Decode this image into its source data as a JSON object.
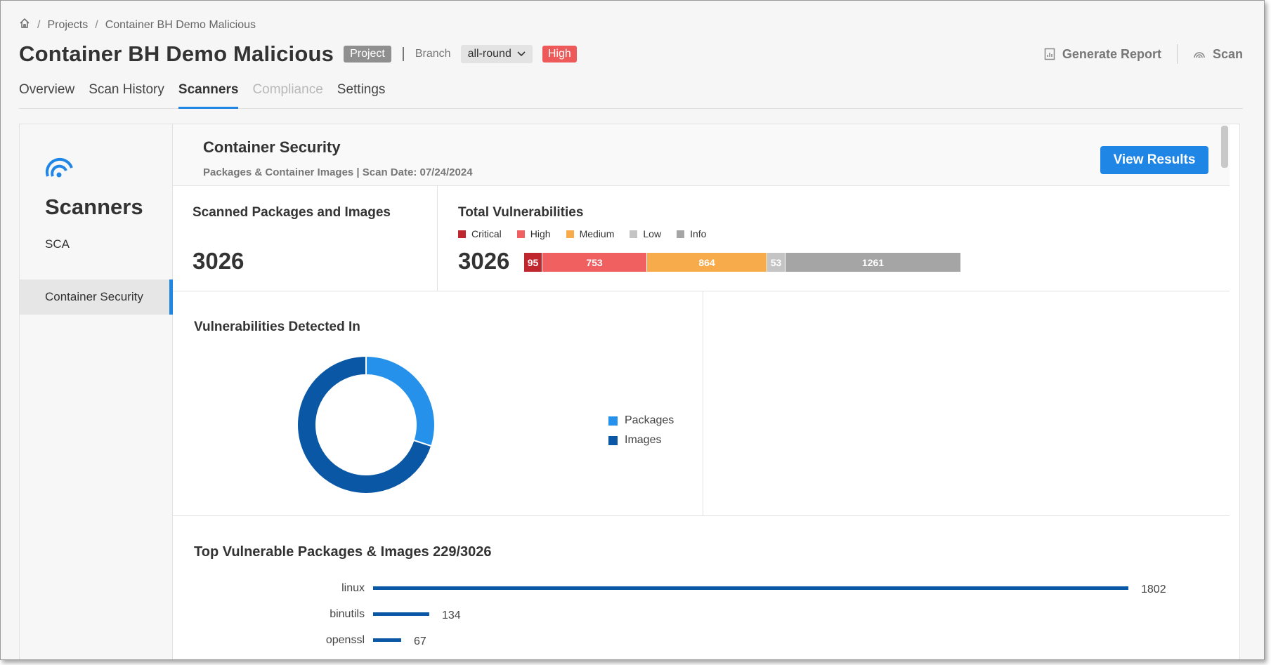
{
  "breadcrumb": {
    "projects": "Projects",
    "current": "Container BH Demo Malicious"
  },
  "header": {
    "title": "Container BH Demo Malicious",
    "project_badge": "Project",
    "branch_label": "Branch",
    "branch_value": "all-round",
    "risk_badge": "High",
    "generate_report": "Generate Report",
    "scan": "Scan"
  },
  "tabs": [
    "Overview",
    "Scan History",
    "Scanners",
    "Compliance",
    "Settings"
  ],
  "sidebar": {
    "title": "Scanners",
    "items": [
      "SCA",
      "Container Security"
    ]
  },
  "scanner": {
    "title": "Container Security",
    "subtitle": "Packages & Container Images | Scan Date: 07/24/2024",
    "view_results": "View Results"
  },
  "stats": {
    "scanned_title": "Scanned Packages and Images",
    "scanned_value": "3026",
    "total_title": "Total Vulnerabilities",
    "total_value": "3026",
    "severity": [
      {
        "name": "Critical",
        "value": 95,
        "color": "#c0262d"
      },
      {
        "name": "High",
        "value": 753,
        "color": "#f06060"
      },
      {
        "name": "Medium",
        "value": 864,
        "color": "#f7ab4a"
      },
      {
        "name": "Low",
        "value": 53,
        "color": "#c4c4c4"
      },
      {
        "name": "Info",
        "value": 1261,
        "color": "#a5a5a5"
      }
    ]
  },
  "detected": {
    "title": "Vulnerabilities Detected In",
    "legend": [
      {
        "name": "Packages",
        "color": "#2591ea"
      },
      {
        "name": "Images",
        "color": "#0a57a6"
      }
    ]
  },
  "chart_data": {
    "type": "bar",
    "title": "Top Vulnerable Packages & Images 229/3026",
    "categories": [
      "linux",
      "binutils",
      "openssl"
    ],
    "values": [
      1802,
      134,
      67
    ],
    "color": "#0a57a6"
  },
  "donut_data": {
    "type": "pie",
    "categories": [
      "Packages",
      "Images"
    ],
    "values": [
      0.3,
      0.7
    ]
  }
}
